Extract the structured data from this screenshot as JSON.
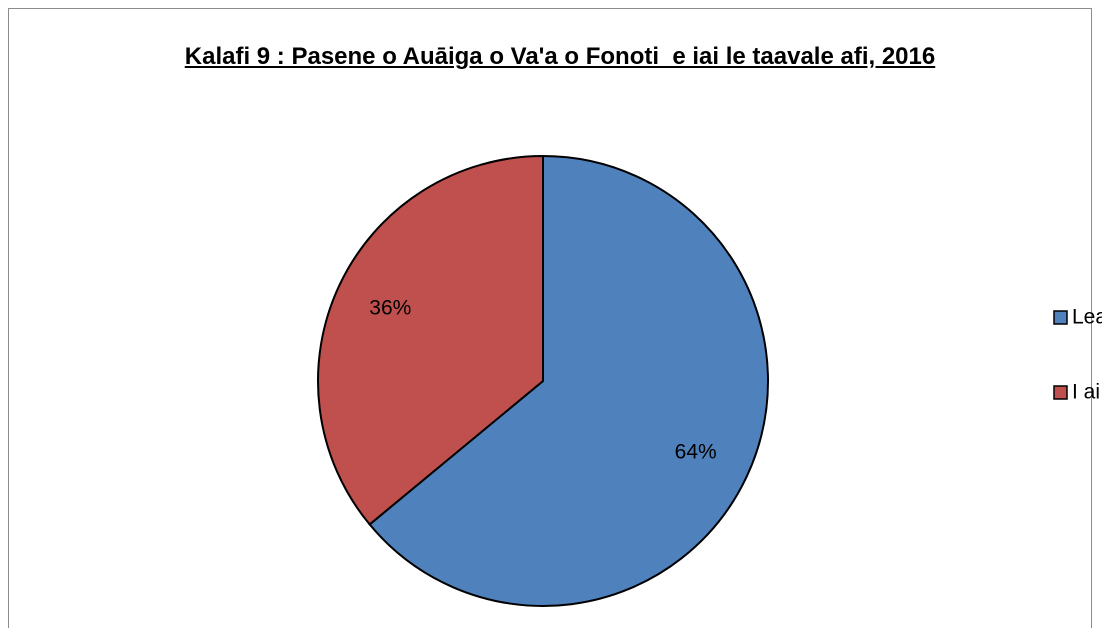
{
  "chart_data": {
    "type": "pie",
    "title": "Kalafi 9 : Pasene o Auāiga o Va'a o Fonoti  e iai le taavale afi, 2016",
    "categories": [
      "Leai se ta'avale",
      "I ai le ta'avale"
    ],
    "values": [
      64,
      36
    ],
    "value_labels": [
      "64%",
      "36%"
    ],
    "colors": [
      "#4f81bd",
      "#c0504d"
    ],
    "legend": "right"
  }
}
